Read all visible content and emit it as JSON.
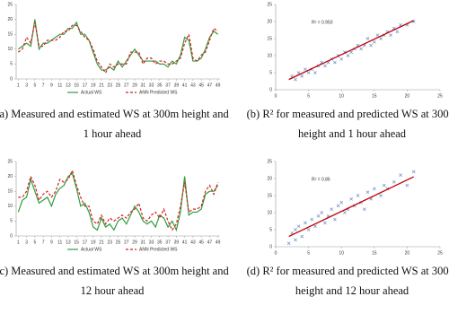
{
  "chart_data": [
    {
      "type": "line",
      "caption": [
        "(a) Measured and estimated WS at 300m height and",
        "1 hour ahead"
      ],
      "x": [
        1,
        2,
        3,
        4,
        5,
        6,
        7,
        8,
        9,
        10,
        11,
        12,
        13,
        14,
        15,
        16,
        17,
        18,
        19,
        20,
        21,
        22,
        23,
        24,
        25,
        26,
        27,
        28,
        29,
        30,
        31,
        32,
        33,
        34,
        35,
        36,
        37,
        38,
        39,
        40,
        41,
        42,
        43,
        44,
        45,
        46,
        47,
        48,
        49
      ],
      "xlim": [
        0.5,
        49.5
      ],
      "xticks": [
        1,
        3,
        5,
        7,
        9,
        11,
        13,
        15,
        17,
        19,
        21,
        23,
        25,
        27,
        29,
        31,
        33,
        35,
        37,
        39,
        41,
        43,
        45,
        47,
        49
      ],
      "ylim": [
        0,
        25
      ],
      "yticks": [
        0,
        5,
        10,
        15,
        20,
        25
      ],
      "series": [
        {
          "name": "Actual WS",
          "color": "#2e9e3e",
          "dash": false,
          "values": [
            10,
            11,
            12,
            11,
            20,
            10,
            12,
            12,
            13,
            14,
            15,
            15,
            17,
            17,
            19,
            15,
            15,
            13,
            9,
            5,
            3,
            3,
            4,
            3,
            6,
            4,
            6,
            8,
            10,
            8,
            6,
            6,
            6,
            6,
            5,
            5,
            4,
            6,
            5,
            8,
            14,
            13,
            6,
            6,
            7,
            10,
            14,
            16,
            15
          ]
        },
        {
          "name": "ANN Predicted WS",
          "color": "#d42020",
          "dash": true,
          "values": [
            9,
            10,
            14,
            12,
            19,
            11,
            11,
            13,
            13,
            13,
            14,
            16,
            16,
            18,
            18,
            16,
            14,
            13,
            10,
            6,
            4,
            2,
            5,
            4,
            5,
            5,
            5,
            9,
            9,
            9,
            5,
            7,
            7,
            5,
            6,
            6,
            5,
            5,
            6,
            7,
            12,
            15,
            7,
            6,
            8,
            9,
            13,
            17,
            16
          ]
        }
      ]
    },
    {
      "type": "scatter",
      "caption": [
        "(b) R² for measured and predicted WS at 300m",
        "height and 1 hour ahead"
      ],
      "annotation": "R² = 0.950",
      "color": "#6a8fc8",
      "x": [
        2.5,
        3,
        3.5,
        4,
        4.5,
        5,
        5.5,
        6,
        6.5,
        7,
        7.5,
        8,
        8.5,
        9,
        9.5,
        10,
        10.5,
        11,
        11.5,
        12,
        12.5,
        13,
        13.5,
        14,
        14.5,
        15,
        15.5,
        16,
        16.5,
        17,
        17.5,
        18,
        18.5,
        19,
        20,
        21
      ],
      "y": [
        4,
        3,
        5,
        4,
        6,
        5,
        6,
        5,
        7,
        8,
        7,
        8,
        9,
        8,
        10,
        9,
        11,
        10,
        11,
        12,
        13,
        12,
        13,
        15,
        13,
        14,
        16,
        15,
        16,
        17,
        16,
        18,
        17,
        19,
        19,
        20
      ],
      "trendline": {
        "x": [
          2,
          21
        ],
        "y": [
          3,
          20.3
        ],
        "color": "#c00000"
      },
      "xlim": [
        0,
        25
      ],
      "xticks": [
        0,
        5,
        10,
        15,
        20,
        25
      ],
      "ylim": [
        0,
        25
      ],
      "yticks": [
        0,
        5,
        10,
        15,
        20,
        25
      ]
    },
    {
      "type": "line",
      "caption": [
        "(c) Measured and estimated WS at 300m height and",
        "12 hour ahead"
      ],
      "x": [
        1,
        2,
        3,
        4,
        5,
        6,
        7,
        8,
        9,
        10,
        11,
        12,
        13,
        14,
        15,
        16,
        17,
        18,
        19,
        20,
        21,
        22,
        23,
        24,
        25,
        26,
        27,
        28,
        29,
        30,
        31,
        32,
        33,
        34,
        35,
        36,
        37,
        38,
        39,
        40,
        41,
        42,
        43,
        44,
        45,
        46,
        47,
        48,
        49
      ],
      "xlim": [
        0.5,
        49.5
      ],
      "xticks": [
        1,
        3,
        5,
        7,
        9,
        11,
        13,
        15,
        17,
        19,
        21,
        23,
        25,
        27,
        29,
        31,
        33,
        35,
        37,
        39,
        41,
        43,
        45,
        47,
        49
      ],
      "ylim": [
        0,
        25
      ],
      "yticks": [
        0,
        5,
        10,
        15,
        20,
        25
      ],
      "series": [
        {
          "name": "Actual WS",
          "color": "#2e9e3e",
          "dash": false,
          "values": [
            8,
            12,
            13,
            19,
            15,
            11,
            12,
            13,
            10,
            14,
            16,
            17,
            20,
            21,
            16,
            10,
            11,
            8,
            3,
            2,
            6,
            3,
            4,
            2,
            5,
            6,
            4,
            7,
            10,
            8,
            5,
            4,
            5,
            3,
            7,
            6,
            3,
            5,
            2,
            8,
            20,
            7,
            8,
            8,
            9,
            14,
            15,
            15,
            17
          ]
        },
        {
          "name": "ANN Predicted WS",
          "color": "#d42020",
          "dash": true,
          "values": [
            13,
            13,
            15,
            20,
            17,
            12,
            14,
            15,
            13,
            15,
            19,
            18,
            19,
            22,
            17,
            13,
            10,
            10,
            5,
            4,
            7,
            4,
            6,
            5,
            6,
            7,
            6,
            8,
            9,
            11,
            6,
            5,
            7,
            8,
            6,
            9,
            5,
            2,
            4,
            10,
            18,
            8,
            9,
            9,
            10,
            15,
            17,
            14,
            18
          ]
        }
      ]
    },
    {
      "type": "scatter",
      "caption": [
        "(d) R² for measured and predicted WS at 300m",
        "height and 12 hour ahead"
      ],
      "annotation": "R² = 0.86",
      "color": "#6a8fc8",
      "x": [
        2,
        2.5,
        3,
        3,
        3.5,
        4,
        4.5,
        5,
        5.5,
        6,
        6.5,
        7,
        7.5,
        8,
        8.5,
        9,
        9.5,
        10,
        10.5,
        11,
        11.5,
        12,
        12.5,
        13,
        13.5,
        14,
        14.5,
        15,
        16,
        16.5,
        17,
        18,
        19,
        20,
        21
      ],
      "y": [
        1,
        4,
        2,
        5,
        6,
        3,
        7,
        5,
        8,
        6,
        9,
        10,
        7,
        9,
        11,
        8,
        12,
        13,
        10,
        11,
        14,
        12,
        15,
        13,
        11,
        16,
        14,
        17,
        15,
        18,
        17,
        19,
        21,
        18,
        22
      ],
      "trendline": {
        "x": [
          2,
          21
        ],
        "y": [
          3,
          20.5
        ],
        "color": "#c00000"
      },
      "xlim": [
        0,
        25
      ],
      "xticks": [
        0,
        5,
        10,
        15,
        20,
        25
      ],
      "ylim": [
        0,
        25
      ],
      "yticks": [
        0,
        5,
        10,
        15,
        20,
        25
      ]
    }
  ]
}
